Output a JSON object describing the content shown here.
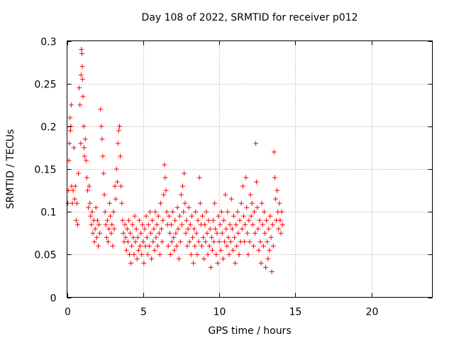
{
  "chart_data": {
    "type": "scatter",
    "title": "Day 108 of 2022, SRMTID for receiver p012",
    "xlabel": "GPS time / hours",
    "ylabel": "SRMTID / TECUs",
    "xlim": [
      0,
      24
    ],
    "ylim": [
      0,
      0.3
    ],
    "xticks": [
      0,
      5,
      10,
      15,
      20
    ],
    "yticks": [
      0,
      0.05,
      0.1,
      0.15,
      0.2,
      0.25,
      0.3
    ],
    "xtick_labels": [
      "0",
      "5",
      "10",
      "15",
      "20"
    ],
    "ytick_labels": [
      "0",
      "0.05",
      "0.1",
      "0.15",
      "0.2",
      "0.25",
      "0.3"
    ],
    "grid": true,
    "marker": "+",
    "marker_color": "#ff0000",
    "series": [
      {
        "name": "p012",
        "points": [
          [
            0.05,
            0.11
          ],
          [
            0.1,
            0.125
          ],
          [
            0.12,
            0.16
          ],
          [
            0.15,
            0.18
          ],
          [
            0.2,
            0.21
          ],
          [
            0.22,
            0.195
          ],
          [
            0.25,
            0.2
          ],
          [
            0.28,
            0.225
          ],
          [
            0.3,
            0.13
          ],
          [
            0.35,
            0.11
          ],
          [
            0.4,
            0.125
          ],
          [
            0.45,
            0.175
          ],
          [
            0.5,
            0.115
          ],
          [
            0.55,
            0.13
          ],
          [
            0.6,
            0.09
          ],
          [
            0.65,
            0.11
          ],
          [
            0.7,
            0.085
          ],
          [
            0.75,
            0.145
          ],
          [
            0.8,
            0.245
          ],
          [
            0.85,
            0.225
          ],
          [
            0.9,
            0.18
          ],
          [
            0.92,
            0.26
          ],
          [
            0.95,
            0.29
          ],
          [
            0.98,
            0.285
          ],
          [
            1.0,
            0.27
          ],
          [
            1.02,
            0.255
          ],
          [
            1.05,
            0.235
          ],
          [
            1.1,
            0.2
          ],
          [
            1.12,
            0.175
          ],
          [
            1.15,
            0.165
          ],
          [
            1.2,
            0.185
          ],
          [
            1.25,
            0.16
          ],
          [
            1.3,
            0.14
          ],
          [
            1.35,
            0.125
          ],
          [
            1.4,
            0.105
          ],
          [
            1.45,
            0.13
          ],
          [
            1.5,
            0.11
          ],
          [
            1.55,
            0.095
          ],
          [
            1.6,
            0.085
          ],
          [
            1.65,
            0.1
          ],
          [
            1.7,
            0.075
          ],
          [
            1.75,
            0.09
          ],
          [
            1.8,
            0.065
          ],
          [
            1.85,
            0.08
          ],
          [
            1.9,
            0.105
          ],
          [
            1.95,
            0.07
          ],
          [
            2.0,
            0.09
          ],
          [
            2.05,
            0.06
          ],
          [
            2.1,
            0.085
          ],
          [
            2.15,
            0.075
          ],
          [
            2.2,
            0.22
          ],
          [
            2.25,
            0.2
          ],
          [
            2.3,
            0.185
          ],
          [
            2.35,
            0.165
          ],
          [
            2.4,
            0.145
          ],
          [
            2.45,
            0.12
          ],
          [
            2.5,
            0.1
          ],
          [
            2.55,
            0.085
          ],
          [
            2.6,
            0.07
          ],
          [
            2.65,
            0.09
          ],
          [
            2.7,
            0.065
          ],
          [
            2.75,
            0.08
          ],
          [
            2.8,
            0.11
          ],
          [
            2.85,
            0.095
          ],
          [
            2.9,
            0.075
          ],
          [
            2.95,
            0.085
          ],
          [
            3.0,
            0.06
          ],
          [
            3.05,
            0.1
          ],
          [
            3.1,
            0.08
          ],
          [
            3.15,
            0.13
          ],
          [
            3.2,
            0.115
          ],
          [
            3.25,
            0.15
          ],
          [
            3.3,
            0.135
          ],
          [
            3.35,
            0.18
          ],
          [
            3.4,
            0.195
          ],
          [
            3.45,
            0.2
          ],
          [
            3.5,
            0.165
          ],
          [
            3.55,
            0.13
          ],
          [
            3.6,
            0.11
          ],
          [
            3.65,
            0.09
          ],
          [
            3.7,
            0.075
          ],
          [
            3.75,
            0.065
          ],
          [
            3.8,
            0.085
          ],
          [
            3.85,
            0.07
          ],
          [
            3.9,
            0.055
          ],
          [
            3.95,
            0.08
          ],
          [
            4.0,
            0.065
          ],
          [
            4.05,
            0.09
          ],
          [
            4.1,
            0.05
          ],
          [
            4.15,
            0.075
          ],
          [
            4.2,
            0.04
          ],
          [
            4.25,
            0.06
          ],
          [
            4.3,
            0.085
          ],
          [
            4.35,
            0.07
          ],
          [
            4.4,
            0.05
          ],
          [
            4.45,
            0.095
          ],
          [
            4.5,
            0.065
          ],
          [
            4.55,
            0.08
          ],
          [
            4.6,
            0.045
          ],
          [
            4.65,
            0.07
          ],
          [
            4.7,
            0.055
          ],
          [
            4.75,
            0.09
          ],
          [
            4.8,
            0.06
          ],
          [
            4.85,
            0.075
          ],
          [
            4.9,
            0.05
          ],
          [
            4.95,
            0.085
          ],
          [
            5.0,
            0.065
          ],
          [
            5.05,
            0.04
          ],
          [
            5.1,
            0.08
          ],
          [
            5.15,
            0.06
          ],
          [
            5.2,
            0.095
          ],
          [
            5.25,
            0.07
          ],
          [
            5.3,
            0.05
          ],
          [
            5.35,
            0.085
          ],
          [
            5.4,
            0.06
          ],
          [
            5.45,
            0.1
          ],
          [
            5.5,
            0.075
          ],
          [
            5.55,
            0.045
          ],
          [
            5.6,
            0.09
          ],
          [
            5.65,
            0.065
          ],
          [
            5.7,
            0.08
          ],
          [
            5.75,
            0.055
          ],
          [
            5.8,
            0.1
          ],
          [
            5.85,
            0.07
          ],
          [
            5.9,
            0.085
          ],
          [
            5.95,
            0.06
          ],
          [
            6.0,
            0.095
          ],
          [
            6.05,
            0.075
          ],
          [
            6.1,
            0.05
          ],
          [
            6.15,
            0.11
          ],
          [
            6.2,
            0.08
          ],
          [
            6.25,
            0.065
          ],
          [
            6.3,
            0.09
          ],
          [
            6.35,
            0.12
          ],
          [
            6.4,
            0.155
          ],
          [
            6.45,
            0.14
          ],
          [
            6.5,
            0.125
          ],
          [
            6.55,
            0.1
          ],
          [
            6.6,
            0.085
          ],
          [
            6.65,
            0.06
          ],
          [
            6.7,
            0.095
          ],
          [
            6.75,
            0.075
          ],
          [
            6.8,
            0.05
          ],
          [
            6.85,
            0.085
          ],
          [
            6.9,
            0.065
          ],
          [
            6.95,
            0.1
          ],
          [
            7.0,
            0.07
          ],
          [
            7.05,
            0.055
          ],
          [
            7.1,
            0.09
          ],
          [
            7.15,
            0.075
          ],
          [
            7.2,
            0.06
          ],
          [
            7.25,
            0.105
          ],
          [
            7.3,
            0.08
          ],
          [
            7.35,
            0.045
          ],
          [
            7.4,
            0.095
          ],
          [
            7.45,
            0.065
          ],
          [
            7.5,
            0.12
          ],
          [
            7.55,
            0.085
          ],
          [
            7.6,
            0.13
          ],
          [
            7.65,
            0.1
          ],
          [
            7.7,
            0.145
          ],
          [
            7.75,
            0.11
          ],
          [
            7.8,
            0.075
          ],
          [
            7.85,
            0.09
          ],
          [
            7.9,
            0.06
          ],
          [
            7.95,
            0.08
          ],
          [
            8.0,
            0.105
          ],
          [
            8.05,
            0.065
          ],
          [
            8.1,
            0.085
          ],
          [
            8.15,
            0.05
          ],
          [
            8.2,
            0.095
          ],
          [
            8.25,
            0.07
          ],
          [
            8.3,
            0.04
          ],
          [
            8.35,
            0.08
          ],
          [
            8.4,
            0.06
          ],
          [
            8.45,
            0.1
          ],
          [
            8.5,
            0.075
          ],
          [
            8.55,
            0.05
          ],
          [
            8.6,
            0.09
          ],
          [
            8.65,
            0.065
          ],
          [
            8.7,
            0.14
          ],
          [
            8.75,
            0.11
          ],
          [
            8.8,
            0.085
          ],
          [
            8.85,
            0.06
          ],
          [
            8.9,
            0.095
          ],
          [
            8.95,
            0.07
          ],
          [
            9.0,
            0.045
          ],
          [
            9.05,
            0.085
          ],
          [
            9.1,
            0.065
          ],
          [
            9.15,
            0.1
          ],
          [
            9.2,
            0.075
          ],
          [
            9.25,
            0.05
          ],
          [
            9.3,
            0.09
          ],
          [
            9.35,
            0.06
          ],
          [
            9.4,
            0.08
          ],
          [
            9.45,
            0.035
          ],
          [
            9.5,
            0.07
          ],
          [
            9.55,
            0.055
          ],
          [
            9.6,
            0.09
          ],
          [
            9.65,
            0.065
          ],
          [
            9.7,
            0.11
          ],
          [
            9.75,
            0.08
          ],
          [
            9.8,
            0.05
          ],
          [
            9.85,
            0.075
          ],
          [
            9.9,
            0.04
          ],
          [
            9.95,
            0.095
          ],
          [
            10.0,
            0.065
          ],
          [
            10.05,
            0.085
          ],
          [
            10.1,
            0.055
          ],
          [
            10.15,
            0.1
          ],
          [
            10.2,
            0.075
          ],
          [
            10.25,
            0.045
          ],
          [
            10.3,
            0.09
          ],
          [
            10.35,
            0.065
          ],
          [
            10.4,
            0.12
          ],
          [
            10.45,
            0.08
          ],
          [
            10.5,
            0.06
          ],
          [
            10.55,
            0.1
          ],
          [
            10.6,
            0.07
          ],
          [
            10.65,
            0.05
          ],
          [
            10.7,
            0.085
          ],
          [
            10.75,
            0.065
          ],
          [
            10.8,
            0.115
          ],
          [
            10.85,
            0.08
          ],
          [
            10.9,
            0.055
          ],
          [
            10.95,
            0.095
          ],
          [
            11.0,
            0.07
          ],
          [
            11.05,
            0.04
          ],
          [
            11.1,
            0.085
          ],
          [
            11.15,
            0.06
          ],
          [
            11.2,
            0.1
          ],
          [
            11.25,
            0.075
          ],
          [
            11.3,
            0.05
          ],
          [
            11.35,
            0.09
          ],
          [
            11.4,
            0.065
          ],
          [
            11.45,
            0.11
          ],
          [
            11.5,
            0.08
          ],
          [
            11.55,
            0.13
          ],
          [
            11.6,
            0.095
          ],
          [
            11.65,
            0.065
          ],
          [
            11.7,
            0.085
          ],
          [
            11.75,
            0.14
          ],
          [
            11.8,
            0.105
          ],
          [
            11.85,
            0.075
          ],
          [
            11.9,
            0.05
          ],
          [
            11.95,
            0.09
          ],
          [
            12.0,
            0.065
          ],
          [
            12.05,
            0.12
          ],
          [
            12.1,
            0.095
          ],
          [
            12.15,
            0.11
          ],
          [
            12.2,
            0.085
          ],
          [
            12.25,
            0.06
          ],
          [
            12.3,
            0.1
          ],
          [
            12.35,
            0.075
          ],
          [
            12.4,
            0.18
          ],
          [
            12.45,
            0.135
          ],
          [
            12.5,
            0.105
          ],
          [
            12.55,
            0.08
          ],
          [
            12.6,
            0.055
          ],
          [
            12.65,
            0.09
          ],
          [
            12.7,
            0.065
          ],
          [
            12.75,
            0.04
          ],
          [
            12.8,
            0.11
          ],
          [
            12.85,
            0.085
          ],
          [
            12.9,
            0.06
          ],
          [
            12.95,
            0.1
          ],
          [
            13.0,
            0.075
          ],
          [
            13.05,
            0.035
          ],
          [
            13.1,
            0.09
          ],
          [
            13.15,
            0.065
          ],
          [
            13.2,
            0.045
          ],
          [
            13.25,
            0.08
          ],
          [
            13.3,
            0.055
          ],
          [
            13.35,
            0.095
          ],
          [
            13.4,
            0.07
          ],
          [
            13.45,
            0.03
          ],
          [
            13.5,
            0.085
          ],
          [
            13.55,
            0.06
          ],
          [
            13.6,
            0.17
          ],
          [
            13.65,
            0.14
          ],
          [
            13.7,
            0.115
          ],
          [
            13.75,
            0.09
          ],
          [
            13.8,
            0.125
          ],
          [
            13.85,
            0.1
          ],
          [
            13.9,
            0.08
          ],
          [
            13.95,
            0.11
          ],
          [
            14.0,
            0.09
          ],
          [
            14.05,
            0.075
          ],
          [
            14.1,
            0.1
          ],
          [
            14.15,
            0.085
          ]
        ]
      }
    ]
  }
}
